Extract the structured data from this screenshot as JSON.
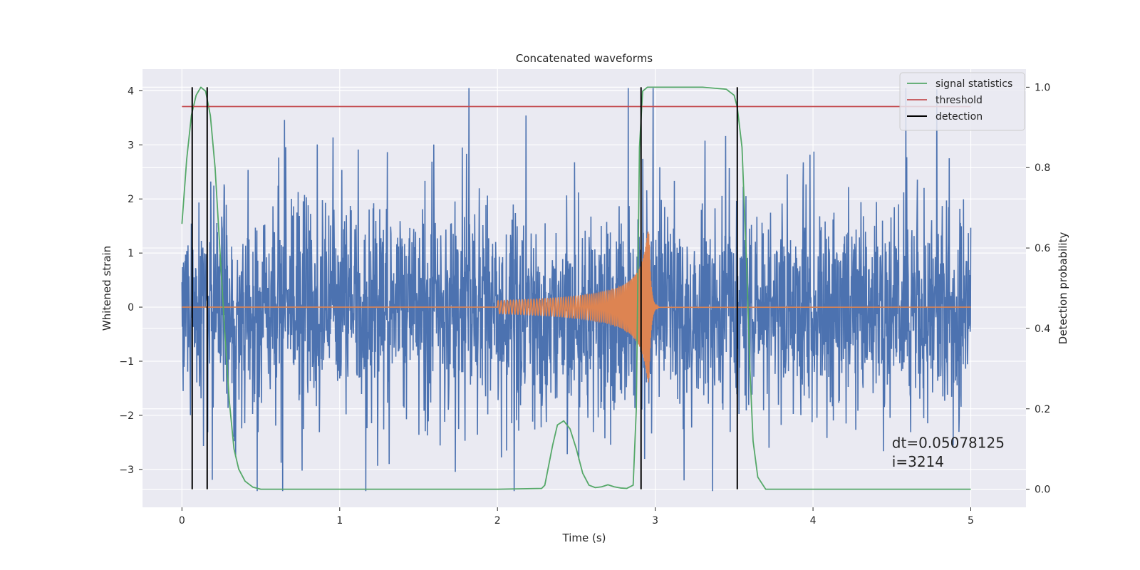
{
  "chart_data": {
    "type": "line",
    "title": "Concatenated waveforms",
    "xlabel": "Time (s)",
    "ylabel": "Whitened strain",
    "ylabel_right": "Detection probability",
    "xlim": [
      -0.25,
      5.35
    ],
    "ylim": [
      -3.7,
      4.4
    ],
    "ylim_right": [
      -0.045,
      1.045
    ],
    "xticks": [
      0,
      1,
      2,
      3,
      4,
      5
    ],
    "xtick_labels": [
      "0",
      "1",
      "2",
      "3",
      "4",
      "5"
    ],
    "yticks": [
      -3,
      -2,
      -1,
      0,
      1,
      2,
      3,
      4
    ],
    "ytick_labels": [
      "−3",
      "−2",
      "−1",
      "0",
      "1",
      "2",
      "3",
      "4"
    ],
    "yticks_right": [
      0.0,
      0.2,
      0.4,
      0.6,
      0.8,
      1.0
    ],
    "ytick_labels_right": [
      "0.0",
      "0.2",
      "0.4",
      "0.6",
      "0.8",
      "1.0"
    ],
    "grid": true,
    "legend_position": "top-right",
    "series": [
      {
        "color": "#4c72b0",
        "axis": "left",
        "description_kind": "noise",
        "x_range": [
          0,
          5
        ],
        "y_range": [
          -3.4,
          4.05
        ]
      },
      {
        "color": "#dd8452",
        "axis": "left",
        "description_kind": "chirp",
        "x_range": [
          0,
          5
        ],
        "chirp_start": 2.0,
        "merger": 2.96,
        "peak_amplitude": 1.4
      },
      {
        "name": "signal statistics",
        "color": "#55a868",
        "axis": "right",
        "x": [
          0.0,
          0.03,
          0.06,
          0.09,
          0.12,
          0.15,
          0.18,
          0.21,
          0.24,
          0.27,
          0.3,
          0.33,
          0.36,
          0.4,
          0.45,
          0.5,
          0.55,
          1.0,
          2.0,
          2.28,
          2.3,
          2.32,
          2.35,
          2.38,
          2.42,
          2.46,
          2.5,
          2.54,
          2.58,
          2.62,
          2.66,
          2.7,
          2.74,
          2.78,
          2.82,
          2.86,
          2.88,
          2.9,
          2.92,
          2.95,
          3.0,
          3.3,
          3.45,
          3.5,
          3.52,
          3.55,
          3.58,
          3.6,
          3.62,
          3.65,
          3.7,
          4.0,
          5.0
        ],
        "y": [
          0.66,
          0.82,
          0.93,
          0.98,
          1.0,
          0.99,
          0.93,
          0.8,
          0.6,
          0.4,
          0.22,
          0.1,
          0.05,
          0.02,
          0.005,
          0.0,
          0.0,
          0.0,
          0.0,
          0.002,
          0.01,
          0.05,
          0.11,
          0.16,
          0.17,
          0.15,
          0.1,
          0.04,
          0.01,
          0.004,
          0.006,
          0.011,
          0.006,
          0.003,
          0.002,
          0.01,
          0.2,
          0.85,
          0.99,
          1.0,
          1.0,
          1.0,
          0.995,
          0.98,
          0.95,
          0.85,
          0.55,
          0.3,
          0.12,
          0.03,
          0.0,
          0.0,
          0.0
        ]
      },
      {
        "name": "threshold",
        "color": "#c44e52",
        "axis": "right",
        "x": [
          0.0,
          5.0
        ],
        "y": [
          0.952,
          0.952
        ]
      },
      {
        "name": "detection",
        "color": "#000000",
        "axis": "right",
        "type": "vlines",
        "x": [
          0.065,
          0.16,
          2.91,
          3.52
        ],
        "ymin": 0.0,
        "ymax": 1.0
      }
    ],
    "annotations": [
      {
        "text": "dt=0.05078125",
        "x": 4.5,
        "y": -2.6
      },
      {
        "text": " i=3214",
        "x": 4.5,
        "y": -2.95
      }
    ]
  }
}
